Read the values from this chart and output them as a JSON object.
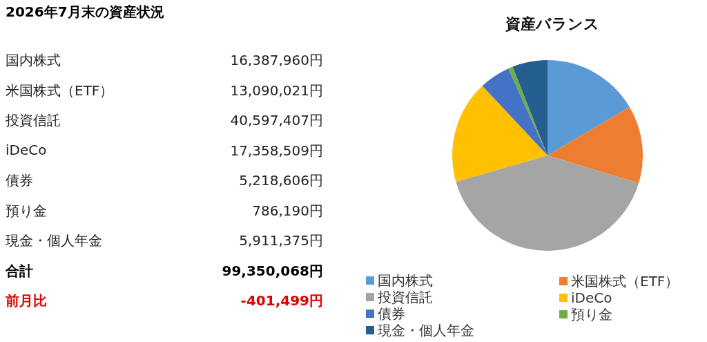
{
  "chart_data": [
    {
      "type": "other",
      "title": "2026年7月末の資産状況",
      "annotations": [
        "国内株式",
        "16,387,960円",
        "米国株式（ETF）",
        "13,090,021円",
        "投資信託",
        "40,597,407円",
        "iDeCo",
        "17,358,509円",
        "債券",
        "5,218,606円",
        "預り金",
        "786,190円",
        "現金・個人年金",
        "5,911,375円",
        "合計",
        "99,350,068円",
        "前月比",
        "-401,499円"
      ]
    },
    {
      "type": "pie",
      "title": "資産バランス",
      "categories": [
        "国内株式",
        "米国株式（ETF）",
        "投資信託",
        "iDeCo",
        "債券",
        "預り金",
        "現金・個人年金"
      ],
      "values": [
        16.5,
        13.18,
        40.86,
        17.47,
        5.25,
        0.79,
        5.95
      ],
      "colors": [
        "#5b9bd5",
        "#ed7d31",
        "#a5a5a5",
        "#ffc000",
        "#4472c4",
        "#70ad47",
        "#255e91"
      ],
      "legend": "bottom"
    }
  ]
}
